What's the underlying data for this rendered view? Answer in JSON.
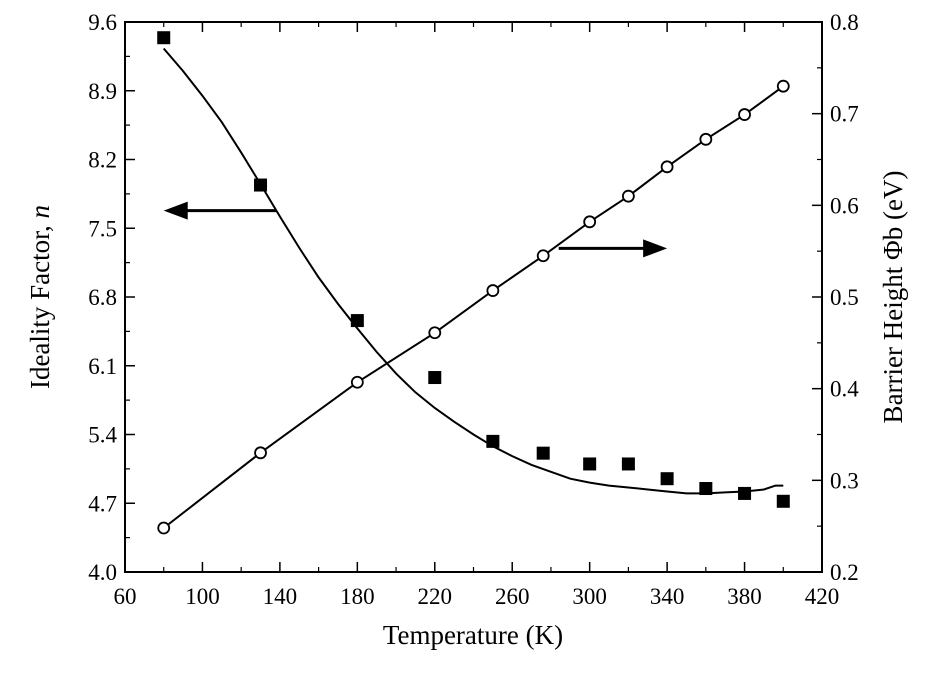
{
  "chart_data": {
    "type": "scatter",
    "title": "",
    "xlabel": "Temperature (K)",
    "ylabel_left": "Ideality Factor, ",
    "ylabel_left_var": "n",
    "ylabel_right": "Barrier Height Φb (eV)",
    "xlim": [
      60,
      420
    ],
    "ylim_left": [
      4.0,
      9.6
    ],
    "ylim_right": [
      0.2,
      0.8
    ],
    "x_ticks": [
      "60",
      "100",
      "140",
      "180",
      "220",
      "260",
      "300",
      "340",
      "380",
      "420"
    ],
    "y_left_ticks": [
      "4.0",
      "4.7",
      "5.4",
      "6.1",
      "6.8",
      "7.5",
      "8.2",
      "8.9",
      "9.6"
    ],
    "y_right_ticks": [
      "0.2",
      "0.3",
      "0.4",
      "0.5",
      "0.6",
      "0.7",
      "0.8"
    ],
    "grid": false,
    "legend": "none",
    "series": [
      {
        "axis": "left",
        "marker": "filled-square",
        "x": [
          80,
          130,
          180,
          220,
          250,
          276,
          300,
          320,
          340,
          360,
          380,
          400
        ],
        "values": [
          9.44,
          7.94,
          6.56,
          5.98,
          5.33,
          5.21,
          5.1,
          5.1,
          4.95,
          4.85,
          4.8,
          4.72
        ]
      },
      {
        "axis": "left",
        "marker": "none",
        "line": "fit",
        "x": [
          80,
          90,
          100,
          110,
          120,
          130,
          140,
          150,
          160,
          170,
          180,
          190,
          200,
          210,
          220,
          230,
          240,
          250,
          260,
          270,
          280,
          290,
          300,
          310,
          320,
          330,
          340,
          350,
          360,
          370,
          380,
          390,
          396,
          400
        ],
        "values": [
          9.33,
          9.1,
          8.85,
          8.58,
          8.27,
          7.95,
          7.62,
          7.3,
          7.0,
          6.73,
          6.48,
          6.24,
          6.02,
          5.83,
          5.67,
          5.53,
          5.4,
          5.28,
          5.18,
          5.09,
          5.02,
          4.95,
          4.91,
          4.88,
          4.86,
          4.84,
          4.82,
          4.8,
          4.8,
          4.81,
          4.82,
          4.84,
          4.88,
          4.88
        ]
      },
      {
        "axis": "right",
        "marker": "open-circle",
        "line": "fit",
        "x": [
          80,
          130,
          180,
          220,
          250,
          276,
          300,
          320,
          340,
          360,
          380,
          400
        ],
        "values": [
          0.248,
          0.33,
          0.407,
          0.461,
          0.507,
          0.545,
          0.582,
          0.61,
          0.642,
          0.672,
          0.699,
          0.73
        ]
      }
    ],
    "annotations": [
      {
        "type": "arrow",
        "direction": "left",
        "axis": "left"
      },
      {
        "type": "arrow",
        "direction": "right",
        "axis": "right"
      }
    ]
  }
}
